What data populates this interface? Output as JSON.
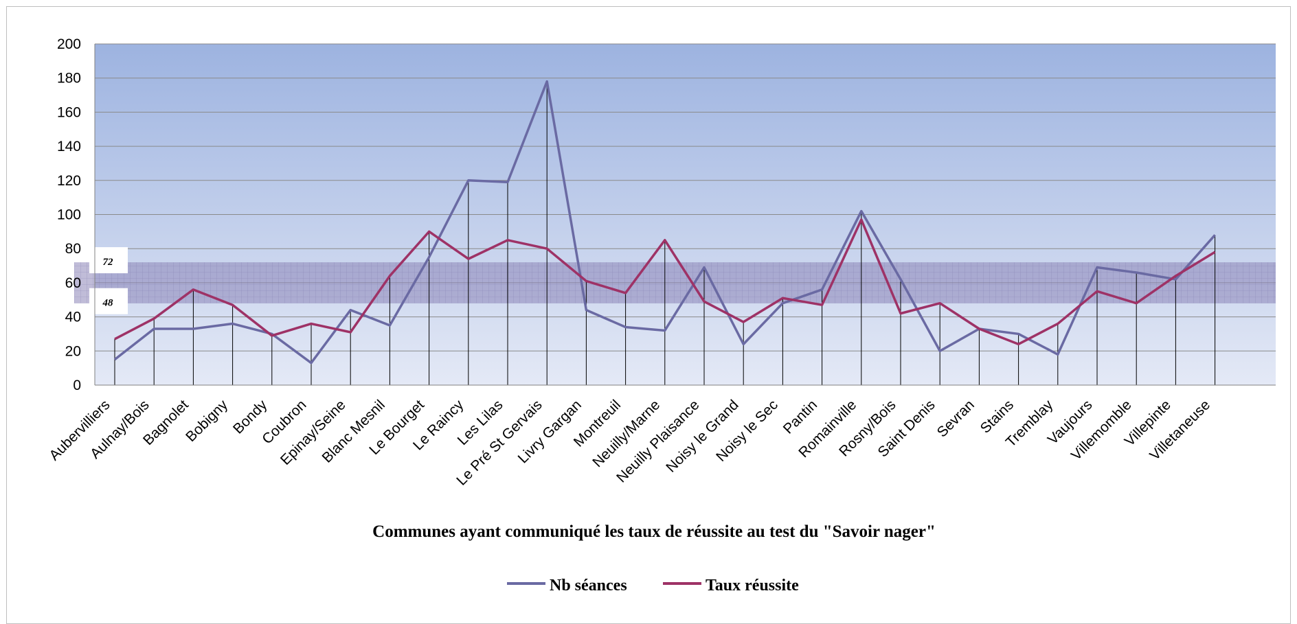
{
  "chart_data": {
    "type": "line",
    "title": "",
    "xlabel": "Communes ayant communiqué les taux de réussite au test du \"Savoir nager\"",
    "ylabel": "",
    "ylim": [
      0,
      200
    ],
    "yticks": [
      0,
      20,
      40,
      60,
      80,
      100,
      120,
      140,
      160,
      180,
      200
    ],
    "grid": true,
    "legend_position": "bottom",
    "band": {
      "from": 48,
      "to": 72,
      "labels": [
        "72",
        "48"
      ],
      "color": "#7b74a8"
    },
    "categories": [
      "Aubervilliers",
      "Aulnay/Bois",
      "Bagnolet",
      "Bobigny",
      "Bondy",
      "Coubron",
      "Epinay/Seine",
      "Blanc Mesnil",
      "Le Bourget",
      "Le Raincy",
      "Les Lilas",
      "Le Pré St Gervais",
      "Livry Gargan",
      "Montreuil",
      "Neuilly/Marne",
      "Neuilly Plaisance",
      "Noisy le Grand",
      "Noisy le Sec",
      "Pantin",
      "Romainville",
      "Rosny/Bois",
      "Saint Denis",
      "Sevran",
      "Stains",
      "Tremblay",
      "Vaujours",
      "Villemomble",
      "Villepinte",
      "Villetaneuse"
    ],
    "series": [
      {
        "name": "Nb séances",
        "color": "#6a6aa3",
        "values": [
          15,
          33,
          33,
          36,
          30,
          13,
          44,
          35,
          75,
          120,
          119,
          178,
          44,
          34,
          32,
          69,
          24,
          48,
          56,
          102,
          62,
          20,
          33,
          30,
          18,
          69,
          66,
          62,
          88
        ]
      },
      {
        "name": "Taux réussite",
        "color": "#9e3266",
        "values": [
          27,
          39,
          56,
          47,
          29,
          36,
          31,
          64,
          90,
          74,
          85,
          80,
          61,
          54,
          85,
          49,
          37,
          51,
          47,
          97,
          42,
          48,
          33,
          24,
          36,
          55,
          48,
          64,
          78
        ]
      }
    ]
  }
}
